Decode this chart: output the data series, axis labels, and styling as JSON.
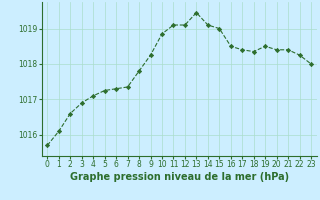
{
  "x": [
    0,
    1,
    2,
    3,
    4,
    5,
    6,
    7,
    8,
    9,
    10,
    11,
    12,
    13,
    14,
    15,
    16,
    17,
    18,
    19,
    20,
    21,
    22,
    23
  ],
  "y": [
    1015.7,
    1016.1,
    1016.6,
    1016.9,
    1017.1,
    1017.25,
    1017.3,
    1017.35,
    1017.8,
    1018.25,
    1018.85,
    1019.1,
    1019.1,
    1019.45,
    1019.1,
    1019.0,
    1018.5,
    1018.4,
    1018.35,
    1018.5,
    1018.4,
    1018.4,
    1018.25,
    1018.0
  ],
  "line_color": "#2d6e2d",
  "marker": "D",
  "marker_size": 2.2,
  "bg_color": "#cceeff",
  "grid_color": "#aaddcc",
  "xlabel": "Graphe pression niveau de la mer (hPa)",
  "xlabel_fontsize": 7,
  "xlabel_color": "#2d6e2d",
  "tick_color": "#2d6e2d",
  "tick_fontsize": 5.5,
  "ylim": [
    1015.4,
    1019.75
  ],
  "yticks": [
    1016,
    1017,
    1018,
    1019
  ],
  "xlim": [
    -0.5,
    23.5
  ]
}
